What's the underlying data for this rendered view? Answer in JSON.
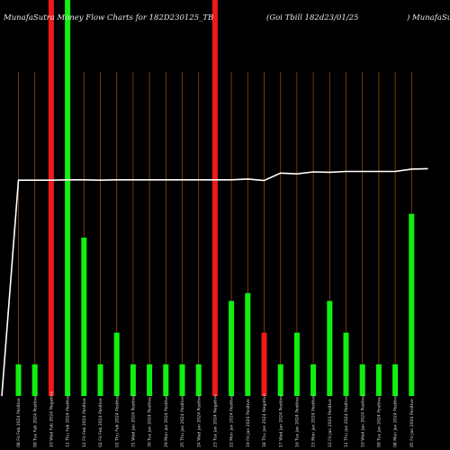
{
  "chart_data": {
    "type": "bar",
    "title_left": "MunafaSutra  Money Flow  Charts for 182D230125_TB",
    "title_mid": "(Goi   Tbill 182d23/01/25",
    "title_right": ") MunafaSutra.com",
    "y_max": 100,
    "bars": [
      {
        "label": "08 Fri Feb 2024 Positive",
        "value": 8,
        "color": "green"
      },
      {
        "label": "09 Tue Feb 2024 Positive",
        "value": 8,
        "color": "green"
      },
      {
        "label": "10 Wed Feb 2024 Negative",
        "value": 100,
        "color": "red"
      },
      {
        "label": "11 Thu Feb 2024 Positive",
        "value": 100,
        "color": "green"
      },
      {
        "label": "12 Fri Feb 2024 Positive",
        "value": 40,
        "color": "green"
      },
      {
        "label": "02 Fri Feb 2024 Positive",
        "value": 8,
        "color": "green"
      },
      {
        "label": "01 Thu Feb 2024 Positive",
        "value": 16,
        "color": "green"
      },
      {
        "label": "31 Wed Jan 2024 Positive",
        "value": 8,
        "color": "green"
      },
      {
        "label": "30 Tue Jan 2024 Positive",
        "value": 8,
        "color": "green"
      },
      {
        "label": "29 Mon Jan 2024 Positive",
        "value": 8,
        "color": "green"
      },
      {
        "label": "25 Thu Jan 2024 Positive",
        "value": 8,
        "color": "green"
      },
      {
        "label": "24 Wed Jan 2024 Positive",
        "value": 8,
        "color": "green"
      },
      {
        "label": "23 Tue Jan 2024 Negative",
        "value": 100,
        "color": "red"
      },
      {
        "label": "22 Mon Jan 2024 Positive",
        "value": 24,
        "color": "green"
      },
      {
        "label": "19 Fri Jan 2024 Positive",
        "value": 26,
        "color": "green"
      },
      {
        "label": "18 Thu Jan 2024 Negative",
        "value": 16,
        "color": "red"
      },
      {
        "label": "17 Wed Jan 2024 Positive",
        "value": 8,
        "color": "green"
      },
      {
        "label": "16 Tue Jan 2024 Positive",
        "value": 16,
        "color": "green"
      },
      {
        "label": "15 Mon Jan 2024 Positive",
        "value": 8,
        "color": "green"
      },
      {
        "label": "12 Fri Jan 2024 Positive",
        "value": 24,
        "color": "green"
      },
      {
        "label": "11 Thu Jan 2024 Positive",
        "value": 16,
        "color": "green"
      },
      {
        "label": "10 Wed Jan 2024 Positive",
        "value": 8,
        "color": "green"
      },
      {
        "label": "09 Tue Jan 2024 Positive",
        "value": 8,
        "color": "green"
      },
      {
        "label": "08 Mon Jan 2024 Positive",
        "value": 8,
        "color": "green"
      },
      {
        "label": "05 Fri Jan 2024 Positive",
        "value": 46,
        "color": "green"
      }
    ],
    "price_line": [
      0,
      54.5,
      54.5,
      54.5,
      54.6,
      54.6,
      54.5,
      54.6,
      54.6,
      54.6,
      54.6,
      54.6,
      54.6,
      54.6,
      54.6,
      54.8,
      54.4,
      56.3,
      56.1,
      56.6,
      56.5,
      56.7,
      56.7,
      56.7,
      56.7,
      57.3,
      57.4
    ],
    "colors": {
      "background": "#000000",
      "green": "#10f010",
      "red": "#f01818",
      "gridline": "#8a4a0a",
      "price_line": "#ffffff",
      "text": "#e8e8e8"
    }
  }
}
